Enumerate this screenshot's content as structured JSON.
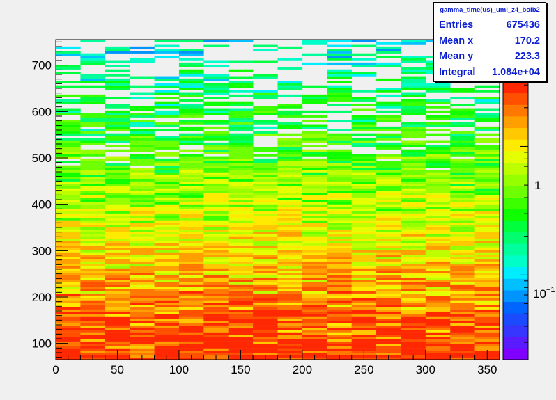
{
  "chart_data": {
    "type": "heatmap",
    "title": "",
    "xlabel": "",
    "ylabel": "",
    "xlim": [
      0,
      360
    ],
    "ylim": [
      65,
      755
    ],
    "x_ticks": [
      0,
      50,
      100,
      150,
      200,
      250,
      300,
      350
    ],
    "y_ticks": [
      100,
      200,
      300,
      400,
      500,
      600,
      700
    ],
    "x_bins": 18,
    "y_bins": 140,
    "z_scale": "log",
    "z_range": [
      0.022,
      3.2
    ],
    "colorbar_ticks": [
      "1",
      "10^-1"
    ],
    "colorbar_labels": {
      "one": "1",
      "tenth_base": "10",
      "tenth_exp": "−1"
    },
    "palette": [
      "#7f00ff",
      "#5a1cff",
      "#3636ff",
      "#1b4aff",
      "#0064ff",
      "#0094ff",
      "#00c0ff",
      "#00ecff",
      "#00ffc8",
      "#00ff9c",
      "#00ff6e",
      "#00ff3c",
      "#10ff00",
      "#3cff00",
      "#6eff00",
      "#96ff00",
      "#beff00",
      "#e6ff00",
      "#ffeb00",
      "#ffc800",
      "#ffa000",
      "#ff7800",
      "#ff5000",
      "#ff2800"
    ],
    "distribution": {
      "description_free": true,
      "peak_y": 65,
      "decay_length_y": 210,
      "peak_value": 3.2,
      "noise_floor": 0.55
    },
    "stats": {
      "name": "gamma_time(us)_uml_z4_bolb2",
      "entries_label": "Entries",
      "entries": "675436",
      "mean_x_label": "Mean x",
      "mean_x": "170.2",
      "mean_y_label": "Mean y",
      "mean_y": "223.3",
      "integral_label": "Integral",
      "integral": "1.084e+04"
    }
  }
}
